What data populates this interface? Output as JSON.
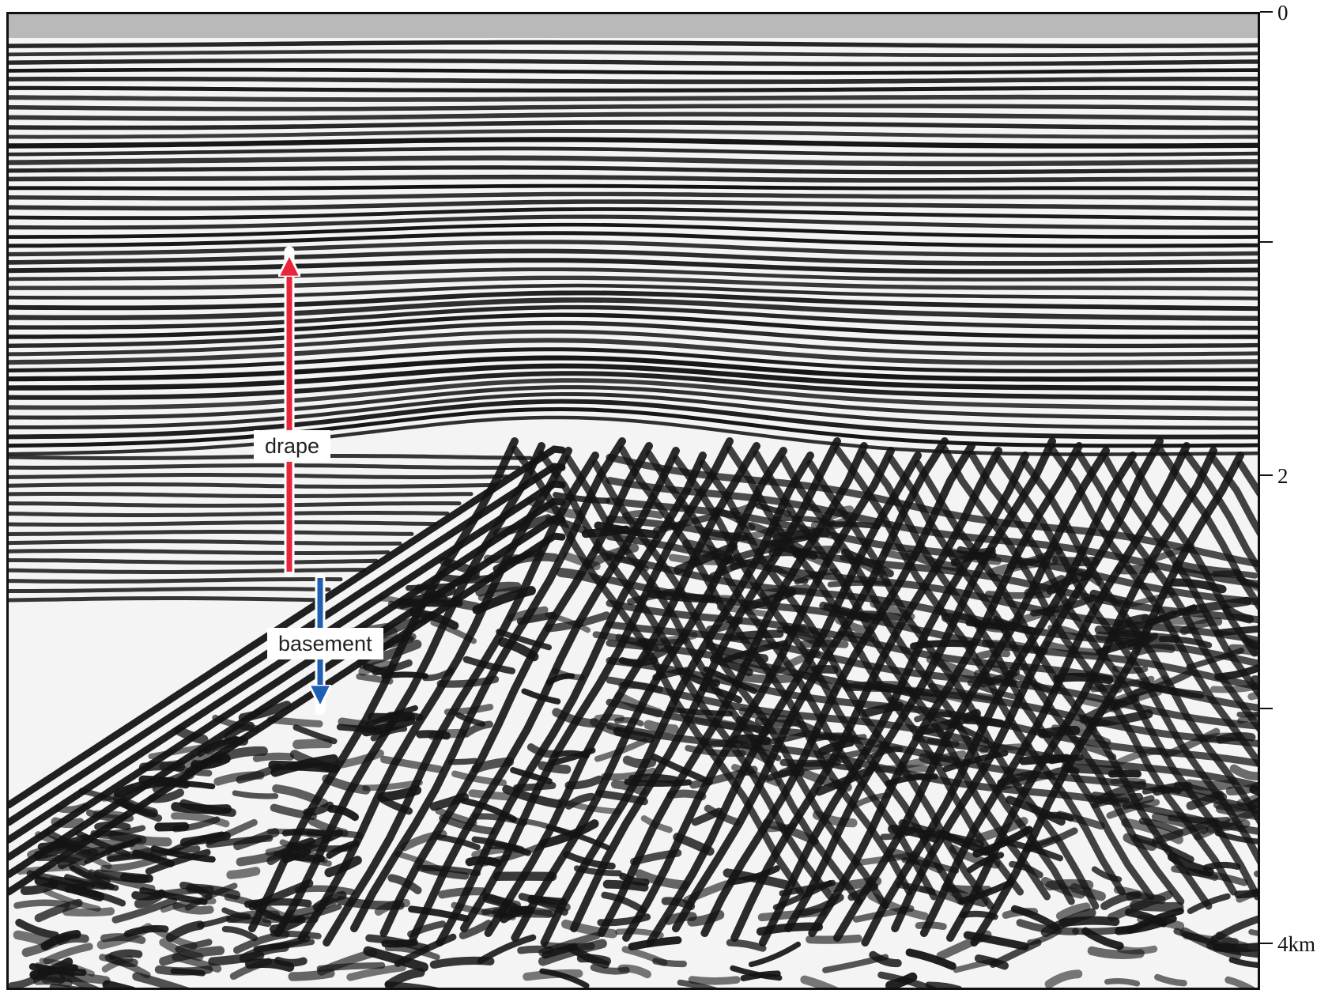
{
  "annotations": {
    "drape": {
      "label": "drape",
      "arrow_color": "#e8253a"
    },
    "basement": {
      "label": "basement",
      "arrow_color": "#1f5fb4"
    }
  },
  "depth_axis": {
    "ticks": [
      {
        "label": "0"
      },
      {
        "label": ""
      },
      {
        "label": "2"
      },
      {
        "label": ""
      },
      {
        "label": "4km"
      }
    ]
  },
  "colors": {
    "reflector_dark": "#141414",
    "background": "#f4f4f4",
    "frame": "#111111"
  }
}
